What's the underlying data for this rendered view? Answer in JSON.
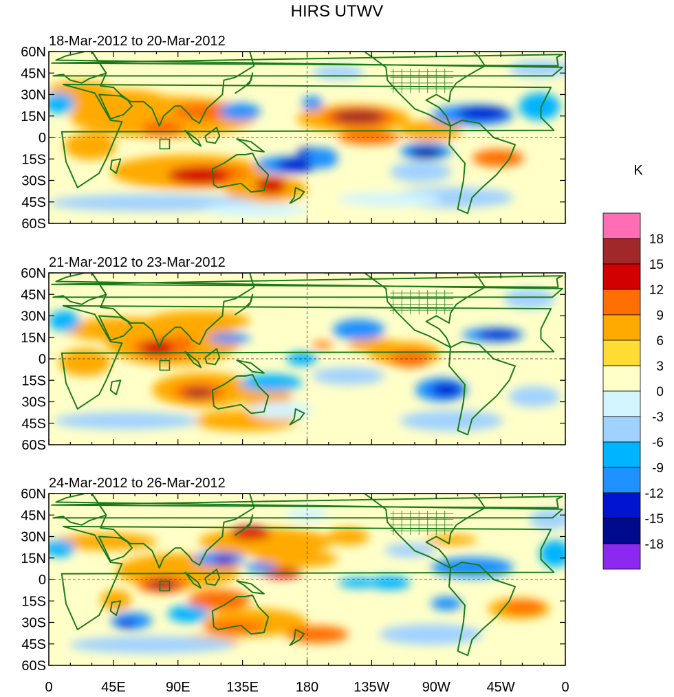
{
  "title": "HIRS UTWV",
  "units": "K",
  "panels": [
    {
      "label": "18-Mar-2012 to 20-Mar-2012"
    },
    {
      "label": "21-Mar-2012 to 23-Mar-2012"
    },
    {
      "label": "24-Mar-2012 to 26-Mar-2012"
    }
  ],
  "lat_ticks": [
    "60N",
    "45N",
    "30N",
    "15N",
    "0",
    "15S",
    "30S",
    "45S",
    "60S"
  ],
  "lon_ticks": [
    "0",
    "45E",
    "90E",
    "135E",
    "180",
    "135W",
    "90W",
    "45W",
    "0"
  ],
  "colorbar": {
    "labels": [
      "18",
      "15",
      "12",
      "9",
      "6",
      "3",
      "0",
      "-3",
      "-6",
      "-9",
      "-12",
      "-15",
      "-18"
    ],
    "colors": [
      "#ff6eb4",
      "#a02828",
      "#d20000",
      "#ff6e00",
      "#ffaa00",
      "#ffdc32",
      "#ffffc8",
      "#d2f5ff",
      "#a0d2ff",
      "#00b4ff",
      "#1e90ff",
      "#0014d2",
      "#000a8c",
      "#8c28f0"
    ]
  },
  "colors": {
    "coastline": "#1a7a1a",
    "background": "#ffffc8"
  }
}
